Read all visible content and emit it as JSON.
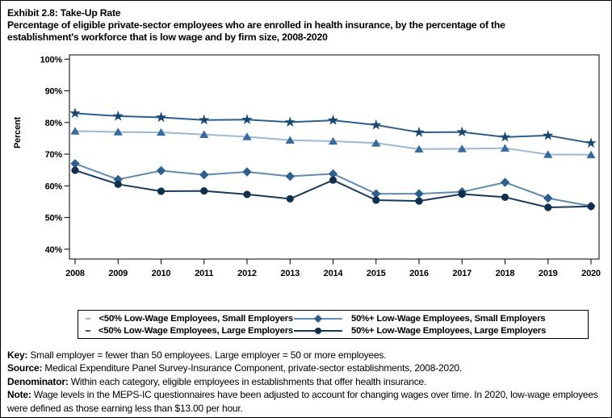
{
  "page": {
    "exhibit_title": "Exhibit 2.8: Take-Up Rate",
    "subtitle_line1": "Percentage of eligible private-sector employees who are enrolled in health insurance, by the percentage of the",
    "subtitle_line2": "establishment's workforce that is low wage and by firm size, 2008-2020"
  },
  "chart_data": {
    "type": "line",
    "title": "Take-Up Rate",
    "xlabel": "",
    "ylabel": "Percent",
    "x": [
      2008,
      2009,
      2010,
      2011,
      2012,
      2013,
      2014,
      2015,
      2016,
      2017,
      2018,
      2019,
      2020
    ],
    "ylim": [
      40,
      100
    ],
    "ytick_step": 10,
    "ytick_suffix": "%",
    "grid": false,
    "legend_position": "bottom",
    "series": [
      {
        "name": "<50% Low-Wage Employees, Small Employers",
        "marker": "triangle",
        "marker_color": "#376a9e",
        "line_color": "#9db8d4",
        "values": [
          77.3,
          77.0,
          76.9,
          76.2,
          75.5,
          74.4,
          74.1,
          73.5,
          71.6,
          71.7,
          71.9,
          69.9,
          69.8
        ]
      },
      {
        "name": "<50% Low-Wage Employees, Large Employers",
        "marker": "star",
        "marker_color": "#17466f",
        "line_color": "#2d5f8e",
        "values": [
          82.9,
          82.0,
          81.6,
          80.8,
          80.9,
          80.1,
          80.7,
          79.2,
          76.9,
          77.0,
          75.4,
          75.9,
          73.5
        ]
      },
      {
        "name": "50%+ Low-Wage Employees, Small Employers",
        "marker": "diamond",
        "marker_color": "#2d5f8e",
        "line_color": "#5f8ab0",
        "values": [
          67.0,
          62.0,
          64.8,
          63.5,
          64.4,
          63.0,
          63.8,
          57.5,
          57.5,
          58.1,
          61.1,
          56.1,
          53.6
        ]
      },
      {
        "name": "50%+ Low-Wage Employees, Large Employers",
        "marker": "circle",
        "marker_color": "#102e4d",
        "line_color": "#16395c",
        "values": [
          64.9,
          60.5,
          58.3,
          58.4,
          57.3,
          55.9,
          61.8,
          55.5,
          55.2,
          57.4,
          56.4,
          53.2,
          53.5
        ]
      }
    ],
    "legend_display_order": [
      0,
      2,
      1,
      3
    ]
  },
  "notes": [
    {
      "label": "Key:",
      "text": " Small employer = fewer than 50 employees. Large employer = 50 or more employees."
    },
    {
      "label": "Source:",
      "text": " Medical Expenditure Panel Survey-Insurance Component, private-sector establishments, 2008-2020."
    },
    {
      "label": "Denominator:",
      "text": " Within each category, eligible employees in establishments that offer health insurance."
    },
    {
      "label": "Note:",
      "text": " Wage levels in the MEPS-IC questionnaires have been adjusted to account for changing wages over time. In 2020, low-wage employees were defined as those earning less than $13.00 per hour."
    }
  ]
}
